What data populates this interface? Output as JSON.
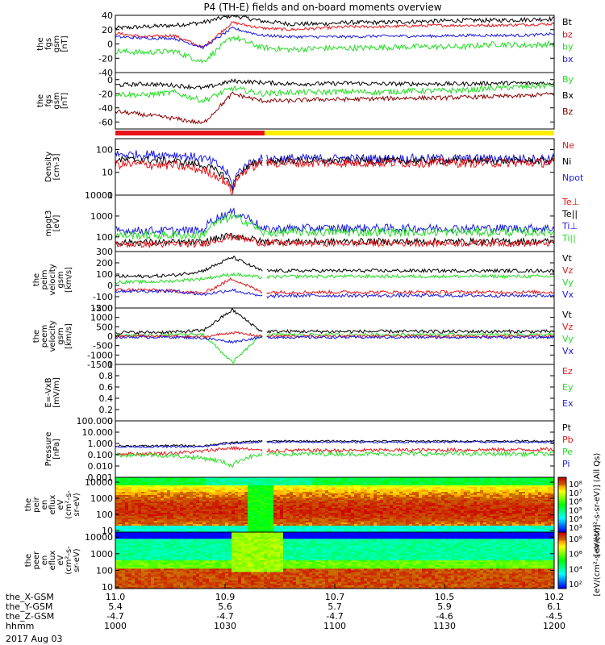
{
  "title": "P4 (TH-E) fields and on-board moments overview",
  "date": "2017 Aug 03",
  "colors": {
    "black": "#000000",
    "red": "#e8141a",
    "green": "#22dd22",
    "blue": "#1a1ae6",
    "darkred": "#8b0000"
  },
  "mode_bar": {
    "colors": [
      "#e8141a",
      "#ffee00"
    ],
    "split_fraction": 0.34
  },
  "chart_data": [
    {
      "type": "line",
      "ylabel": [
        "the",
        "fgs",
        "gsm",
        "[nT]"
      ],
      "ylim": [
        -40,
        40
      ],
      "yticks": [
        40,
        20,
        0,
        -20,
        -40
      ],
      "legend": [
        {
          "label": "Bt",
          "color": "#000000"
        },
        {
          "label": "bz",
          "color": "#e8141a"
        },
        {
          "label": "by",
          "color": "#22dd22"
        },
        {
          "label": "bx",
          "color": "#1a1ae6"
        }
      ],
      "series": [
        {
          "name": "Bt",
          "color": "#000000",
          "baseline": [
            22,
            24,
            26,
            30,
            40,
            32,
            28,
            28,
            30,
            30,
            31,
            32,
            33,
            33,
            34,
            35
          ],
          "noise": 3
        },
        {
          "name": "bz",
          "color": "#e8141a",
          "baseline": [
            15,
            10,
            12,
            -5,
            30,
            22,
            20,
            22,
            24,
            24,
            25,
            26,
            26,
            26,
            27,
            28
          ],
          "noise": 2
        },
        {
          "name": "by",
          "color": "#22dd22",
          "baseline": [
            -10,
            -12,
            -10,
            -25,
            10,
            -5,
            -8,
            -6,
            -6,
            -5,
            -4,
            -4,
            -4,
            0,
            -2,
            0
          ],
          "noise": 4
        },
        {
          "name": "bx",
          "color": "#1a1ae6",
          "baseline": [
            10,
            8,
            8,
            -5,
            22,
            12,
            10,
            10,
            10,
            11,
            11,
            11,
            12,
            12,
            12,
            14
          ],
          "noise": 2
        }
      ]
    },
    {
      "type": "line",
      "ylabel": [
        "the",
        "fgs",
        "gsm",
        "[nT]"
      ],
      "ylim": [
        -70,
        10
      ],
      "yticks": [
        0,
        -20,
        -40,
        -60
      ],
      "legend": [
        {
          "label": "By",
          "color": "#22dd22"
        },
        {
          "label": "Bx",
          "color": "#000000"
        },
        {
          "label": "Bz",
          "color": "#8b0000"
        }
      ],
      "series": [
        {
          "name": "Bx",
          "color": "#000000",
          "baseline": [
            -8,
            -6,
            -8,
            -12,
            -2,
            -4,
            -6,
            -6,
            -5,
            -6,
            -6,
            -6,
            -6,
            -5,
            -5,
            -5
          ],
          "noise": 3
        },
        {
          "name": "By",
          "color": "#22dd22",
          "baseline": [
            -20,
            -22,
            -18,
            -30,
            -12,
            -20,
            -18,
            -18,
            -17,
            -18,
            -16,
            -16,
            -15,
            -12,
            -10,
            -8
          ],
          "noise": 4
        },
        {
          "name": "Bz",
          "color": "#8b0000",
          "baseline": [
            -45,
            -50,
            -55,
            -62,
            -20,
            -30,
            -30,
            -28,
            -28,
            -27,
            -26,
            -26,
            -25,
            -24,
            -23,
            -20
          ],
          "noise": 3
        }
      ]
    },
    {
      "type": "line",
      "ylog": true,
      "ylabel": [
        "Density",
        "[cm-3]"
      ],
      "ylim": [
        1,
        300
      ],
      "yticks": [
        100,
        10,
        1
      ],
      "gap": [
        0.335,
        0.345
      ],
      "legend": [
        {
          "label": "Ne",
          "color": "#e8141a"
        },
        {
          "label": "Ni",
          "color": "#000000"
        },
        {
          "label": "Npot",
          "color": "#1a1ae6"
        }
      ],
      "series": [
        {
          "name": "Npot",
          "color": "#1a1ae6",
          "baseline": [
            60,
            60,
            60,
            40,
            2,
            40,
            40,
            40,
            40,
            40,
            40,
            40,
            40,
            40,
            40,
            40
          ],
          "noise": 0.05
        },
        {
          "name": "Ni",
          "color": "#000000",
          "baseline": [
            35,
            35,
            30,
            20,
            1.5,
            30,
            32,
            32,
            32,
            32,
            32,
            32,
            32,
            32,
            32,
            32
          ],
          "noise": 0.04
        },
        {
          "name": "Ne",
          "color": "#e8141a",
          "baseline": [
            22,
            22,
            20,
            12,
            1.2,
            25,
            26,
            26,
            26,
            26,
            26,
            26,
            26,
            26,
            26,
            26
          ],
          "noise": 0.05
        }
      ]
    },
    {
      "type": "line",
      "ylog": true,
      "ylabel": [
        "mpgt3",
        "[eV]"
      ],
      "ylim": [
        20,
        10000
      ],
      "yticks": [
        10000,
        1000,
        100
      ],
      "legend": [
        {
          "label": "Te⊥",
          "color": "#e8141a"
        },
        {
          "label": "Te||",
          "color": "#000000"
        },
        {
          "label": "Ti⊥",
          "color": "#1a1ae6"
        },
        {
          "label": "Ti||",
          "color": "#22dd22"
        }
      ],
      "series": [
        {
          "name": "Ti⊥",
          "color": "#1a1ae6",
          "baseline": [
            200,
            200,
            200,
            200,
            1500,
            220,
            260,
            260,
            260,
            260,
            260,
            260,
            260,
            260,
            260,
            260
          ],
          "noise": 0.05
        },
        {
          "name": "Ti||",
          "color": "#22dd22",
          "baseline": [
            120,
            120,
            120,
            120,
            900,
            150,
            170,
            170,
            170,
            170,
            170,
            170,
            170,
            170,
            170,
            170
          ],
          "noise": 0.05
        },
        {
          "name": "Te||",
          "color": "#000000",
          "baseline": [
            55,
            55,
            55,
            55,
            120,
            60,
            60,
            60,
            60,
            60,
            60,
            60,
            60,
            60,
            60,
            60
          ],
          "noise": 0.04
        },
        {
          "name": "Te⊥",
          "color": "#e8141a",
          "baseline": [
            45,
            45,
            45,
            45,
            100,
            50,
            50,
            50,
            50,
            50,
            50,
            50,
            50,
            50,
            50,
            50
          ],
          "noise": 0.04
        }
      ]
    },
    {
      "type": "line",
      "ylabel": [
        "the",
        "peim",
        "velocity",
        "gsm",
        "[km/s]"
      ],
      "ylim": [
        -200,
        300
      ],
      "yticks": [
        300,
        200,
        100,
        0,
        -100,
        -200
      ],
      "gap": [
        0.335,
        0.345
      ],
      "legend": [
        {
          "label": "Vt",
          "color": "#000000"
        },
        {
          "label": "Vz",
          "color": "#e8141a"
        },
        {
          "label": "Vy",
          "color": "#22dd22"
        },
        {
          "label": "Vx",
          "color": "#1a1ae6"
        }
      ],
      "series": [
        {
          "name": "Vt",
          "color": "#000000",
          "baseline": [
            80,
            80,
            90,
            130,
            250,
            130,
            130,
            130,
            130,
            130,
            130,
            130,
            130,
            130,
            130,
            130
          ],
          "noise": 15
        },
        {
          "name": "Vy",
          "color": "#22dd22",
          "baseline": [
            30,
            30,
            40,
            60,
            100,
            70,
            80,
            80,
            80,
            80,
            80,
            80,
            80,
            80,
            80,
            80
          ],
          "noise": 15
        },
        {
          "name": "Vz",
          "color": "#e8141a",
          "baseline": [
            -40,
            -40,
            -50,
            -70,
            60,
            -60,
            -60,
            -60,
            -60,
            -60,
            -60,
            -60,
            -60,
            -60,
            -60,
            -60
          ],
          "noise": 15
        },
        {
          "name": "Vx",
          "color": "#1a1ae6",
          "baseline": [
            -50,
            -50,
            -50,
            -80,
            -40,
            -100,
            -90,
            -90,
            -90,
            -90,
            -90,
            -90,
            -90,
            -90,
            -90,
            -90
          ],
          "noise": 15
        }
      ]
    },
    {
      "type": "line",
      "ylabel": [
        "the",
        "peem",
        "velocity",
        "gsm",
        "[km/s]"
      ],
      "ylim": [
        -1500,
        1500
      ],
      "yticks": [
        1500,
        1000,
        500,
        0,
        -500,
        -1000,
        -1500
      ],
      "gap": [
        0.335,
        0.345
      ],
      "legend": [
        {
          "label": "Vt",
          "color": "#000000"
        },
        {
          "label": "Vz",
          "color": "#e8141a"
        },
        {
          "label": "Vy",
          "color": "#22dd22"
        },
        {
          "label": "Vx",
          "color": "#1a1ae6"
        }
      ],
      "series": [
        {
          "name": "Vt",
          "color": "#000000",
          "baseline": [
            200,
            200,
            220,
            300,
            1400,
            250,
            250,
            250,
            250,
            250,
            250,
            250,
            250,
            250,
            250,
            250
          ],
          "noise": 90
        },
        {
          "name": "Vy",
          "color": "#22dd22",
          "baseline": [
            50,
            50,
            60,
            100,
            -1400,
            80,
            80,
            80,
            80,
            80,
            80,
            80,
            80,
            80,
            80,
            80
          ],
          "noise": 80
        },
        {
          "name": "Vz",
          "color": "#e8141a",
          "baseline": [
            0,
            0,
            0,
            -50,
            200,
            0,
            0,
            0,
            0,
            0,
            0,
            0,
            0,
            0,
            0,
            0
          ],
          "noise": 70
        },
        {
          "name": "Vx",
          "color": "#1a1ae6",
          "baseline": [
            -50,
            -50,
            -50,
            -100,
            -300,
            -60,
            -60,
            -60,
            -60,
            -60,
            -60,
            -60,
            -60,
            -60,
            -60,
            -60
          ],
          "noise": 70
        }
      ]
    },
    {
      "type": "line",
      "ylabel": [
        "E=-VxB",
        "[mV/m]"
      ],
      "ylim": [
        0,
        1
      ],
      "yticks": [
        1.0,
        0.8,
        0.6,
        0.4,
        0.2,
        0.0
      ],
      "legend": [
        {
          "label": "Ez",
          "color": "#e8141a"
        },
        {
          "label": "Ey",
          "color": "#22dd22"
        },
        {
          "label": "Ex",
          "color": "#1a1ae6"
        }
      ],
      "series": []
    },
    {
      "type": "line",
      "ylog": true,
      "ylabel": [
        "Pressure",
        "[nPa]"
      ],
      "ylim": [
        0.001,
        100
      ],
      "yticks": [
        100,
        10,
        1,
        0.1,
        0.01,
        0.001
      ],
      "ytick_labels": [
        "100.000",
        "10.000",
        "1.000",
        "0.100",
        "0.010",
        "0.001"
      ],
      "gap": [
        0.335,
        0.345
      ],
      "legend": [
        {
          "label": "Pt",
          "color": "#000000"
        },
        {
          "label": "Pb",
          "color": "#e8141a"
        },
        {
          "label": "Pe",
          "color": "#22dd22"
        },
        {
          "label": "Pi",
          "color": "#1a1ae6"
        }
      ],
      "series": [
        {
          "name": "Pt",
          "color": "#000000",
          "baseline": [
            0.6,
            0.6,
            0.65,
            0.6,
            1.2,
            1.6,
            1.6,
            1.6,
            1.6,
            1.6,
            1.6,
            1.6,
            1.6,
            1.6,
            1.6,
            1.6
          ],
          "noise": 0.02
        },
        {
          "name": "Pi",
          "color": "#1a1ae6",
          "baseline": [
            0.5,
            0.5,
            0.5,
            0.5,
            1.0,
            1.3,
            1.3,
            1.3,
            1.3,
            1.3,
            1.3,
            1.3,
            1.3,
            1.3,
            1.3,
            1.3
          ],
          "noise": 0.02
        },
        {
          "name": "Pb",
          "color": "#e8141a",
          "baseline": [
            0.12,
            0.12,
            0.14,
            0.2,
            0.4,
            0.22,
            0.24,
            0.24,
            0.24,
            0.25,
            0.26,
            0.26,
            0.27,
            0.28,
            0.28,
            0.3
          ],
          "noise": 0.04
        },
        {
          "name": "Pe",
          "color": "#22dd22",
          "baseline": [
            0.1,
            0.1,
            0.08,
            0.05,
            0.01,
            0.1,
            0.12,
            0.12,
            0.12,
            0.12,
            0.12,
            0.12,
            0.12,
            0.12,
            0.12,
            0.12
          ],
          "noise": 0.05
        }
      ]
    },
    {
      "type": "heatmap",
      "ylabel": [
        "the",
        "peir",
        "en",
        "eflux",
        "eV",
        "(cm²-s-",
        "sr-eV)"
      ],
      "ylog": true,
      "ylim": [
        8,
        20000
      ],
      "yticks": [
        10000,
        1000,
        100,
        10
      ]
    },
    {
      "type": "heatmap",
      "ylabel": [
        "the",
        "peer",
        "en",
        "eflux",
        "eV",
        "(cm²-s-",
        "sr-eV)"
      ],
      "ylog": true,
      "ylim": [
        8,
        20000
      ],
      "yticks": [
        10000,
        1000,
        100,
        10
      ]
    }
  ],
  "colorbars": [
    {
      "ticks": [
        "10⁸",
        "10⁷",
        "10⁶",
        "10⁵",
        "10⁴",
        "10³"
      ],
      "label": "[eV/(cm²-s-sr-eV)] (All Qs)"
    },
    {
      "ticks": [
        "10⁸",
        "10⁶",
        "10⁴",
        "10²"
      ],
      "label": "[eV/(cm²-s-sr-eV)]"
    }
  ],
  "xaxis": {
    "row_labels": [
      "the_X-GSM",
      "the_Y-GSM",
      "the_Z-GSM",
      "hhmm"
    ],
    "ticks": [
      {
        "pos": 0.0,
        "vals": [
          "11.0",
          "5.4",
          "-4.7",
          "1000"
        ]
      },
      {
        "pos": 0.25,
        "vals": [
          "10.9",
          "5.6",
          "-4.7",
          "1030"
        ]
      },
      {
        "pos": 0.5,
        "vals": [
          "10.7",
          "5.7",
          "-4.7",
          "1100"
        ]
      },
      {
        "pos": 0.75,
        "vals": [
          "10.5",
          "5.9",
          "-4.6",
          "1130"
        ]
      },
      {
        "pos": 1.0,
        "vals": [
          "10.2",
          "6.1",
          "-4.5",
          "1200"
        ]
      }
    ]
  }
}
